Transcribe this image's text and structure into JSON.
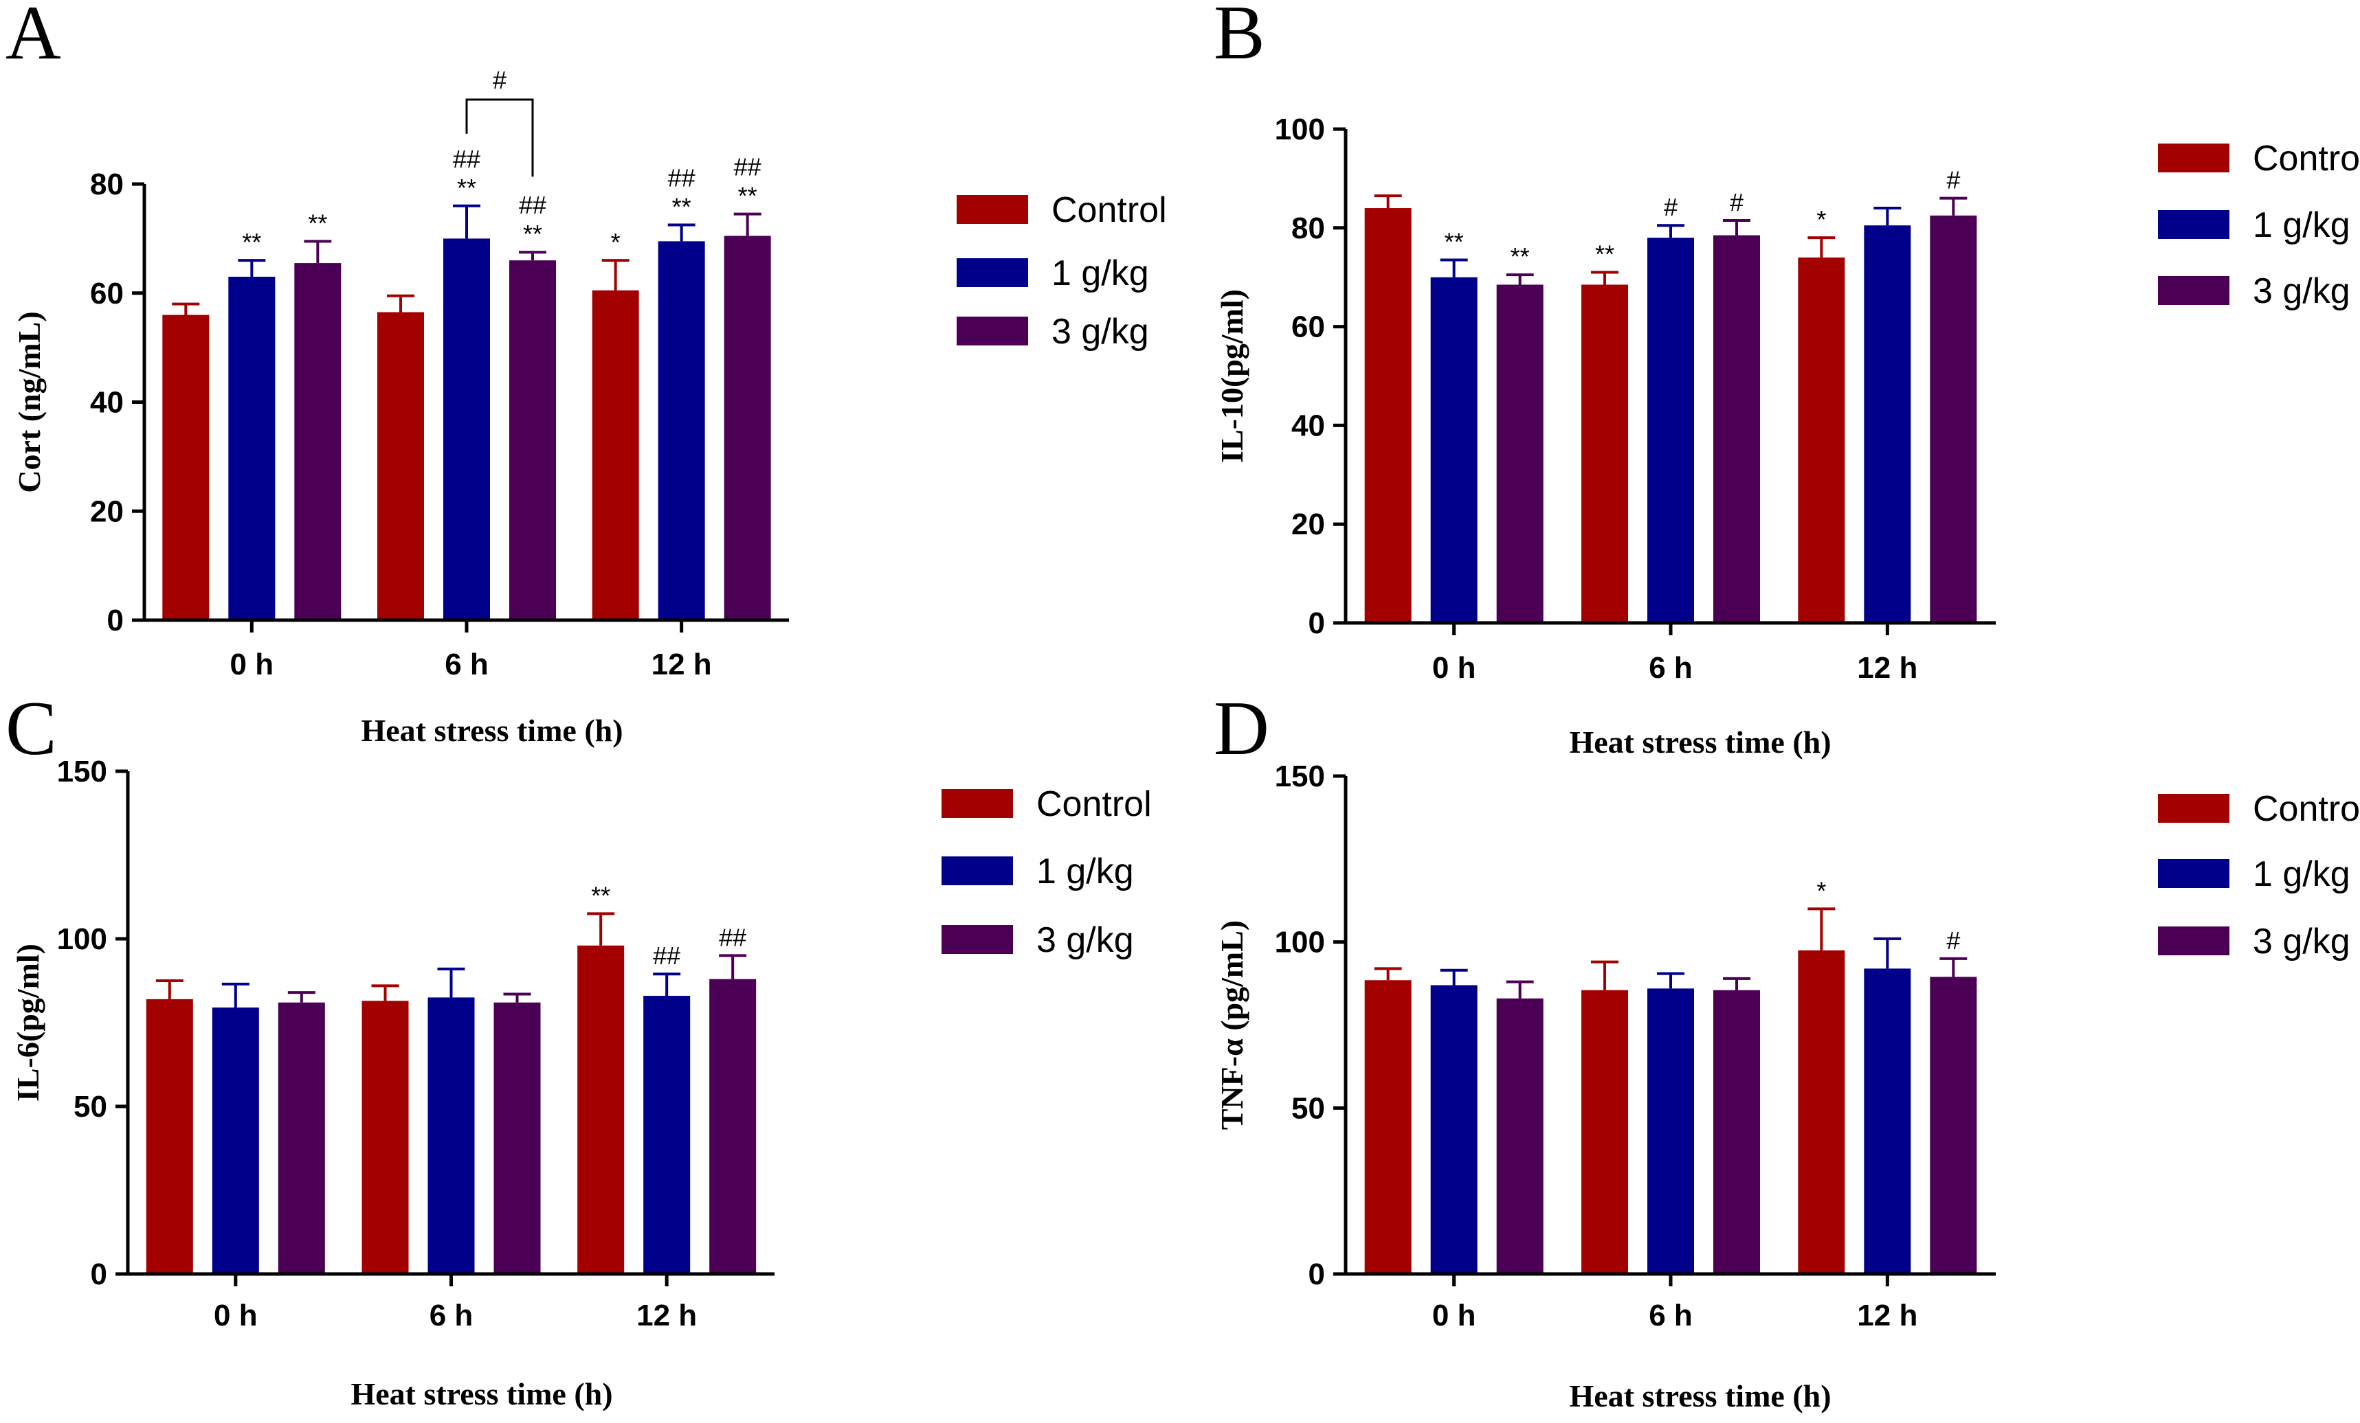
{
  "chart_data": [
    {
      "panel": "A",
      "type": "bar",
      "ylabel": "Cort (ng/mL)",
      "xlabel": "Heat stress time (h)",
      "categories": [
        "0 h",
        "6 h",
        "12 h"
      ],
      "ylim": [
        0,
        80
      ],
      "yticks": [
        0,
        20,
        40,
        60,
        80
      ],
      "series": [
        {
          "name": "Control",
          "color": "#A30000",
          "values": [
            56,
            56.5,
            60.5
          ],
          "errors": [
            2,
            3,
            5.5
          ],
          "sig": [
            "",
            "",
            "*"
          ]
        },
        {
          "name": "1 g/kg",
          "color": "#00008B",
          "values": [
            63,
            70,
            69.5
          ],
          "errors": [
            3,
            6,
            3
          ],
          "sig": [
            "**",
            "##\n**",
            "##\n**"
          ]
        },
        {
          "name": "3 g/kg",
          "color": "#4B0055",
          "values": [
            65.5,
            66,
            70.5
          ],
          "errors": [
            4,
            1.5,
            4
          ],
          "sig": [
            "**",
            "##\n**",
            "##\n**"
          ]
        }
      ],
      "bracket": {
        "label": "#",
        "category": 1,
        "from_series": 1,
        "to_series": 2
      }
    },
    {
      "panel": "B",
      "type": "bar",
      "ylabel": "IL-10(pg/ml)",
      "xlabel": "Heat stress time (h)",
      "categories": [
        "0 h",
        "6 h",
        "12 h"
      ],
      "ylim": [
        0,
        100
      ],
      "yticks": [
        0,
        20,
        40,
        60,
        80,
        100
      ],
      "series": [
        {
          "name": "Control",
          "color": "#A30000",
          "values": [
            84,
            68.5,
            74
          ],
          "errors": [
            2.5,
            2.5,
            4
          ],
          "sig": [
            "",
            "**",
            "*"
          ]
        },
        {
          "name": "1 g/kg",
          "color": "#00008B",
          "values": [
            70,
            78,
            80.5
          ],
          "errors": [
            3.5,
            2.5,
            3.5
          ],
          "sig": [
            "**",
            "#",
            ""
          ]
        },
        {
          "name": "3 g/kg",
          "color": "#4B0055",
          "values": [
            68.5,
            78.5,
            82.5
          ],
          "errors": [
            2,
            3,
            3.5
          ],
          "sig": [
            "**",
            "#",
            "#"
          ]
        }
      ]
    },
    {
      "panel": "C",
      "type": "bar",
      "ylabel": "IL-6(pg/ml)",
      "xlabel": "Heat stress time (h)",
      "categories": [
        "0 h",
        "6 h",
        "12 h"
      ],
      "ylim": [
        0,
        150
      ],
      "yticks": [
        0,
        50,
        100,
        150
      ],
      "series": [
        {
          "name": "Control",
          "color": "#A30000",
          "values": [
            82,
            81.5,
            98
          ],
          "errors": [
            5.5,
            4.5,
            9.5
          ],
          "sig": [
            "",
            "",
            "**"
          ]
        },
        {
          "name": "1 g/kg",
          "color": "#00008B",
          "values": [
            79.5,
            82.5,
            83
          ],
          "errors": [
            7,
            8.5,
            6.5
          ],
          "sig": [
            "",
            "",
            "##"
          ]
        },
        {
          "name": "3 g/kg",
          "color": "#4B0055",
          "values": [
            81,
            81,
            88
          ],
          "errors": [
            3,
            2.5,
            7
          ],
          "sig": [
            "",
            "",
            "##"
          ]
        }
      ]
    },
    {
      "panel": "D",
      "type": "bar",
      "ylabel": "TNF-α (pg/mL)",
      "xlabel": "Heat stress time (h)",
      "categories": [
        "0 h",
        "6 h",
        "12 h"
      ],
      "ylim": [
        0,
        150
      ],
      "yticks": [
        0,
        50,
        100,
        150
      ],
      "series": [
        {
          "name": "Control",
          "color": "#A30000",
          "values": [
            88.5,
            85.5,
            97.5
          ],
          "errors": [
            3.5,
            8.5,
            12.5
          ],
          "sig": [
            "",
            "",
            "*"
          ]
        },
        {
          "name": "1 g/kg",
          "color": "#00008B",
          "values": [
            87,
            86,
            92
          ],
          "errors": [
            4.5,
            4.5,
            9
          ],
          "sig": [
            "",
            "",
            ""
          ]
        },
        {
          "name": "3 g/kg",
          "color": "#4B0055",
          "values": [
            83,
            85.5,
            89.5
          ],
          "errors": [
            5,
            3.5,
            5.5
          ],
          "sig": [
            "",
            "",
            "#"
          ]
        }
      ]
    }
  ]
}
